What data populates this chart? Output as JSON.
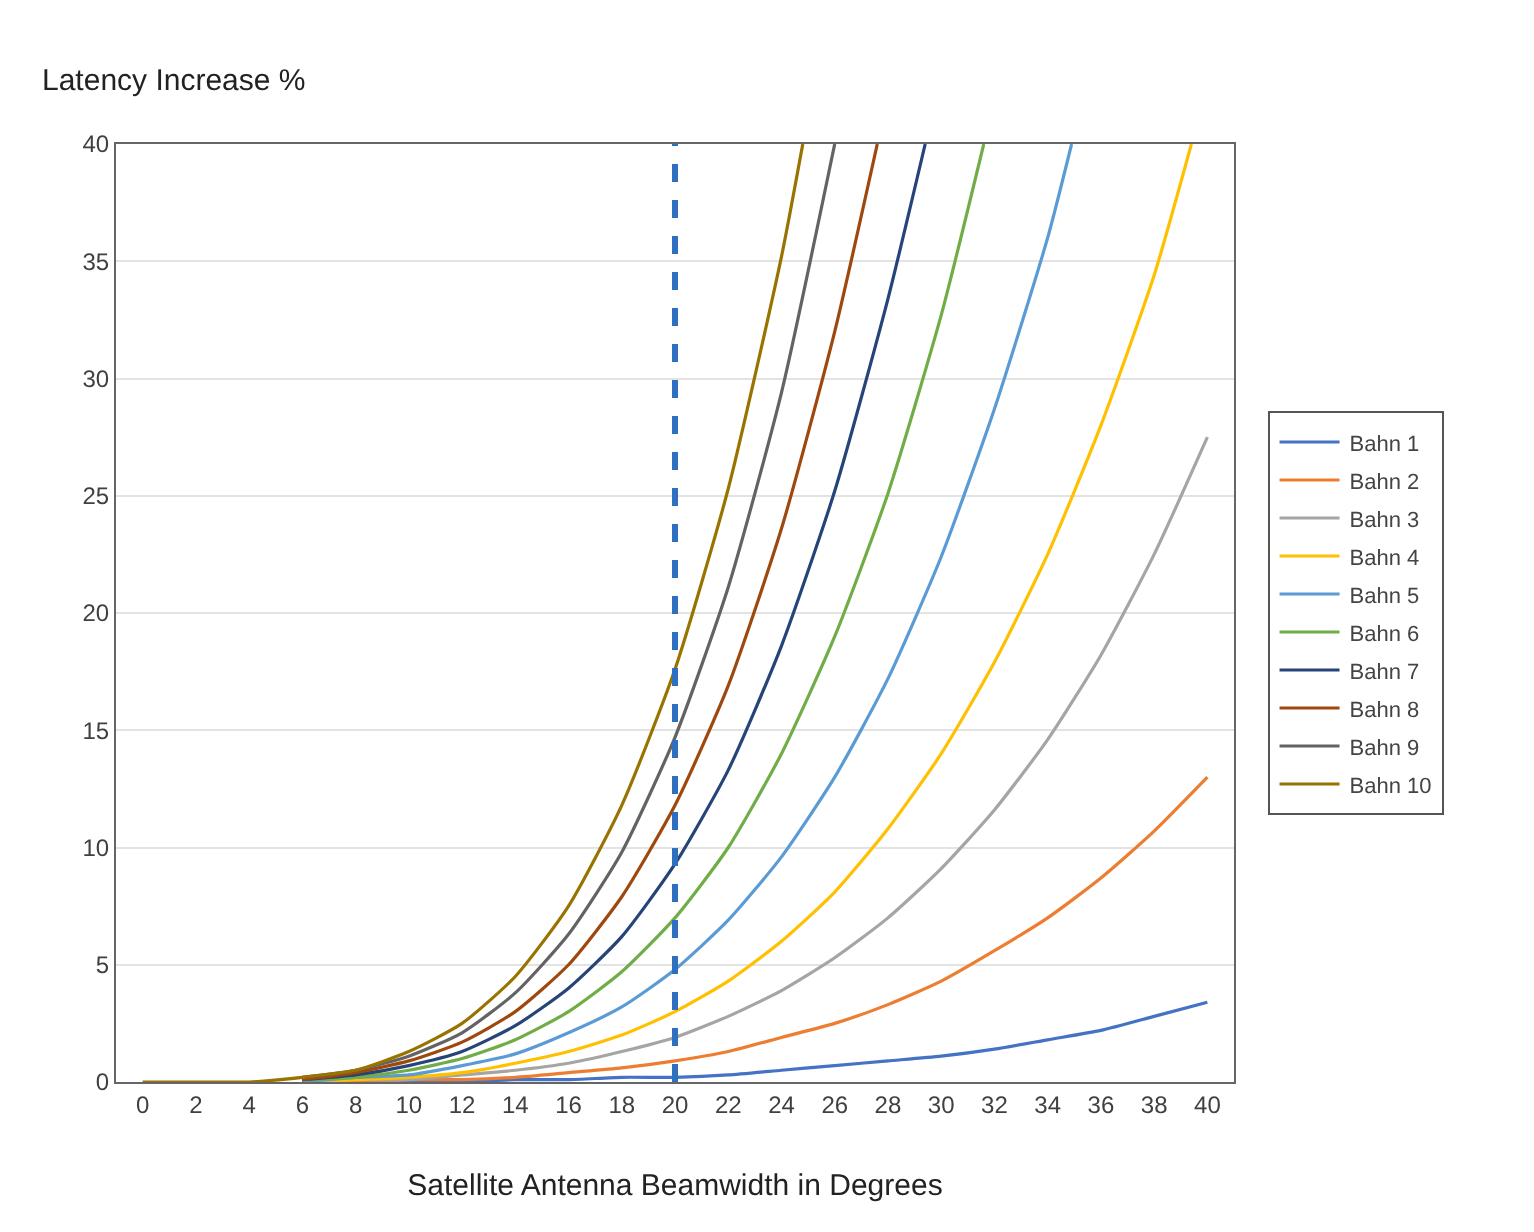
{
  "chart_data": {
    "type": "line",
    "ylabel": "Latency Increase %",
    "xlabel": "Satellite Antenna Beamwidth in Degrees",
    "xlim": [
      -1,
      41
    ],
    "xticks": [
      0,
      2,
      4,
      6,
      8,
      10,
      12,
      14,
      16,
      18,
      20,
      22,
      24,
      26,
      28,
      30,
      32,
      34,
      36,
      38,
      40
    ],
    "ylim": [
      0,
      40
    ],
    "yticks": [
      0,
      5,
      10,
      15,
      20,
      25,
      30,
      35,
      40
    ],
    "grid": "y",
    "legend": "right",
    "marker": "none",
    "line_style": "solid",
    "ref_lines": [
      {
        "axis": "x",
        "value": 20,
        "color": "#2f6fc0",
        "line_style": "dashed"
      }
    ],
    "series": [
      {
        "name": "Bahn 1",
        "color": "#4472c4",
        "x": [
          6,
          8,
          10,
          12,
          14,
          16,
          18,
          20,
          22,
          24,
          26,
          28,
          30,
          32,
          34,
          36,
          38,
          40
        ],
        "values": [
          0,
          0,
          0,
          0,
          0.1,
          0.1,
          0.2,
          0.2,
          0.3,
          0.5,
          0.7,
          0.9,
          1.1,
          1.4,
          1.8,
          2.2,
          2.8,
          3.4
        ]
      },
      {
        "name": "Bahn 2",
        "color": "#ed7d31",
        "x": [
          6,
          8,
          10,
          12,
          14,
          16,
          18,
          20,
          22,
          24,
          26,
          28,
          30,
          32,
          34,
          36,
          38,
          40
        ],
        "values": [
          0,
          0,
          0.1,
          0.1,
          0.2,
          0.4,
          0.6,
          0.9,
          1.3,
          1.9,
          2.5,
          3.3,
          4.3,
          5.6,
          7,
          8.7,
          10.7,
          13
        ]
      },
      {
        "name": "Bahn 3",
        "color": "#a5a5a5",
        "x": [
          6,
          8,
          10,
          12,
          14,
          16,
          18,
          20,
          22,
          24,
          26,
          28,
          30,
          32,
          34,
          36,
          38,
          40
        ],
        "values": [
          0,
          0.1,
          0.1,
          0.3,
          0.5,
          0.8,
          1.3,
          1.9,
          2.8,
          3.9,
          5.3,
          7,
          9.1,
          11.6,
          14.6,
          18.2,
          22.5,
          27.5
        ]
      },
      {
        "name": "Bahn 4",
        "color": "#ffc000",
        "x": [
          6,
          8,
          10,
          12,
          14,
          16,
          18,
          20,
          22,
          24,
          26,
          28,
          30,
          32,
          34,
          36,
          38,
          39.4
        ],
        "values": [
          0,
          0.1,
          0.2,
          0.4,
          0.8,
          1.3,
          2,
          3,
          4.3,
          6,
          8.1,
          10.8,
          14,
          17.9,
          22.5,
          28,
          34.4,
          40
        ]
      },
      {
        "name": "Bahn 5",
        "color": "#5b9bd5",
        "x": [
          6,
          8,
          10,
          12,
          14,
          16,
          18,
          20,
          22,
          24,
          26,
          28,
          30,
          32,
          34,
          34.9
        ],
        "values": [
          0,
          0.2,
          0.3,
          0.7,
          1.2,
          2.1,
          3.2,
          4.8,
          6.9,
          9.6,
          13,
          17.2,
          22.4,
          28.7,
          36,
          40
        ]
      },
      {
        "name": "Bahn 6",
        "color": "#70ad47",
        "x": [
          6,
          8,
          10,
          12,
          14,
          16,
          18,
          20,
          22,
          24,
          26,
          28,
          30,
          31.6
        ],
        "values": [
          0.1,
          0.2,
          0.5,
          1,
          1.8,
          3,
          4.7,
          7,
          10,
          14,
          19,
          25.1,
          32.7,
          40
        ]
      },
      {
        "name": "Bahn 7",
        "color": "#264478",
        "x": [
          6,
          8,
          10,
          12,
          14,
          16,
          18,
          20,
          22,
          24,
          26,
          28,
          29.4
        ],
        "values": [
          0.1,
          0.3,
          0.7,
          1.3,
          2.4,
          4,
          6.2,
          9.3,
          13.3,
          18.6,
          25.2,
          33.4,
          40
        ]
      },
      {
        "name": "Bahn 8",
        "color": "#9e480e",
        "x": [
          6,
          8,
          10,
          12,
          14,
          16,
          18,
          20,
          22,
          24,
          26,
          27.6
        ],
        "values": [
          0.1,
          0.4,
          0.9,
          1.7,
          3,
          5,
          7.9,
          11.8,
          16.9,
          23.6,
          32,
          40
        ]
      },
      {
        "name": "Bahn 9",
        "color": "#636363",
        "x": [
          6,
          8,
          10,
          12,
          14,
          16,
          18,
          20,
          22,
          24,
          26
        ],
        "values": [
          0.2,
          0.5,
          1.1,
          2.1,
          3.8,
          6.3,
          9.8,
          14.7,
          21.1,
          29.4,
          40
        ]
      },
      {
        "name": "Bahn 10",
        "color": "#997300",
        "x": [
          0,
          2,
          4,
          6,
          8,
          10,
          12,
          14,
          16,
          18,
          20,
          22,
          24,
          24.8
        ],
        "values": [
          0,
          0,
          0,
          0.2,
          0.5,
          1.3,
          2.5,
          4.5,
          7.5,
          11.8,
          17.6,
          25.3,
          35.2,
          40
        ]
      }
    ]
  }
}
